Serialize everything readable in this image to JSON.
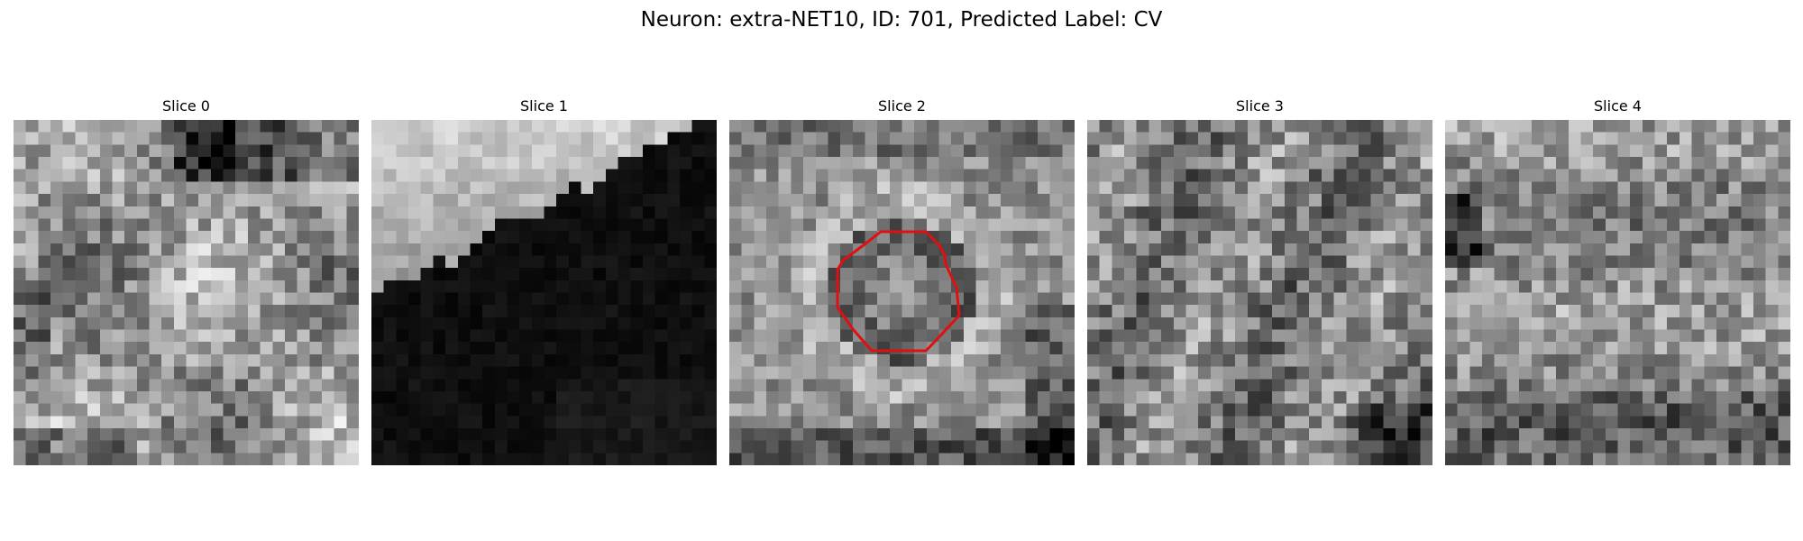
{
  "figure": {
    "title": "Neuron: extra-NET10, ID: 701, Predicted Label: CV"
  },
  "slices": [
    {
      "label": "Slice 0",
      "pattern": "bright-center-dark-top"
    },
    {
      "label": "Slice 1",
      "pattern": "bright-upper-left-dark-lower-right"
    },
    {
      "label": "Slice 2",
      "pattern": "ring-dark-bottom",
      "roi": true
    },
    {
      "label": "Slice 3",
      "pattern": "mid-texture"
    },
    {
      "label": "Slice 4",
      "pattern": "mid-texture-dark-left"
    }
  ],
  "roi": {
    "color": "#e01010",
    "slice_index": 2
  },
  "grid_size": 28
}
